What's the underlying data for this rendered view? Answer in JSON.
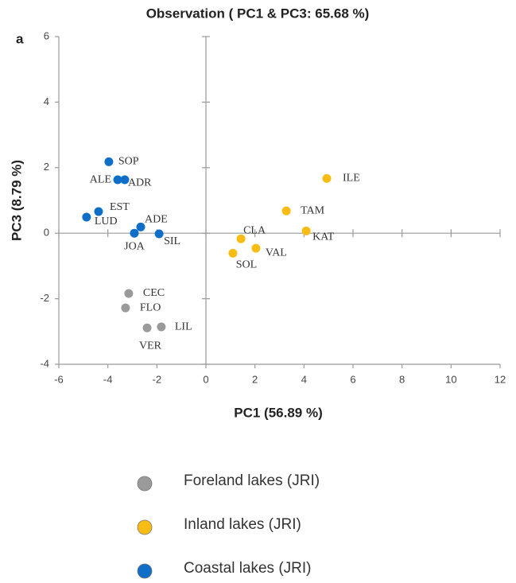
{
  "chart_data": {
    "type": "scatter",
    "title": "Observation ( PC1 & PC3: 65.68 %)",
    "panel_label": "a",
    "x_label": "PC1 (56.89 %)",
    "y_label": "PC3 (8.79 %)",
    "xlim": [
      -6,
      12
    ],
    "xticks": [
      -6,
      -4,
      -2,
      0,
      2,
      4,
      6,
      8,
      10,
      12
    ],
    "ylim": [
      -4,
      6
    ],
    "yticks": [
      -4,
      -2,
      0,
      2,
      4,
      6
    ],
    "series": [
      {
        "name": "Foreland lakes (JRI)",
        "color": "#9a9a9a",
        "labels": [
          "CEC",
          "FLO",
          "VER",
          "LIL"
        ],
        "x": [
          -3.15,
          -3.28,
          -2.4,
          -1.82
        ],
        "values": [
          -1.84,
          -2.28,
          -2.89,
          -2.86
        ]
      },
      {
        "name": "Inland lakes (JRI)",
        "color": "#f9bc15",
        "labels": [
          "ILE",
          "TAM",
          "KAT",
          "CLA",
          "VAL",
          "SOL"
        ],
        "x": [
          4.93,
          3.28,
          4.09,
          1.43,
          2.04,
          1.1
        ],
        "values": [
          1.67,
          0.68,
          0.07,
          -0.17,
          -0.46,
          -0.61
        ]
      },
      {
        "name": "Coastal lakes (JRI)",
        "color": "#0f6ec8",
        "labels": [
          "SOP",
          "ALE",
          "ADR",
          "EST",
          "LUD",
          "ADE",
          "JOA",
          "SIL"
        ],
        "x": [
          -3.96,
          -3.6,
          -3.31,
          -4.38,
          -4.87,
          -2.66,
          -2.92,
          -1.91
        ],
        "values": [
          2.18,
          1.63,
          1.63,
          0.66,
          0.49,
          0.19,
          0,
          -0.02
        ]
      }
    ]
  }
}
